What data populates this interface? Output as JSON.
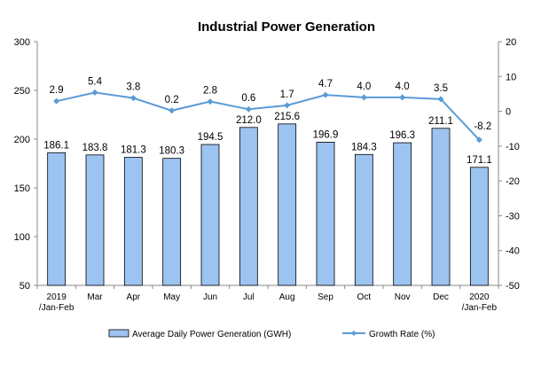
{
  "chart_data": {
    "type": "bar",
    "title": "Industrial Power Generation",
    "categories": [
      "2019\n/Jan-Feb",
      "Mar",
      "Apr",
      "May",
      "Jun",
      "Jul",
      "Aug",
      "Sep",
      "Oct",
      "Nov",
      "Dec",
      "2020\n/Jan-Feb"
    ],
    "series": [
      {
        "name": "Average Daily Power Generation (GWH)",
        "type": "bar",
        "axis": "left",
        "color": "#9DC3F0",
        "values": [
          186.1,
          183.8,
          181.3,
          180.3,
          194.5,
          212.0,
          215.6,
          196.9,
          184.3,
          196.3,
          211.1,
          171.1
        ],
        "labels": [
          "186.1",
          "183.8",
          "181.3",
          "180.3",
          "194.5",
          "212.0",
          "215.6",
          "196.9",
          "184.3",
          "196.3",
          "211.1",
          "171.1"
        ]
      },
      {
        "name": "Growth Rate (%)",
        "type": "line",
        "axis": "right",
        "color": "#5B9BD5",
        "values": [
          2.9,
          5.4,
          3.8,
          0.2,
          2.8,
          0.6,
          1.7,
          4.7,
          4.0,
          4.0,
          3.5,
          -8.2
        ],
        "labels": [
          "2.9",
          "5.4",
          "3.8",
          "0.2",
          "2.8",
          "0.6",
          "1.7",
          "4.7",
          "4.0",
          "4.0",
          "3.5",
          "-8.2"
        ]
      }
    ],
    "y_left": {
      "min": 50,
      "max": 300,
      "step": 50,
      "ticks": [
        "50",
        "100",
        "150",
        "200",
        "250",
        "300"
      ]
    },
    "y_right": {
      "min": -50,
      "max": 20,
      "step": 10,
      "ticks": [
        "-50",
        "-40",
        "-30",
        "-20",
        "-10",
        "0",
        "10",
        "20"
      ]
    },
    "grid": false,
    "legend_position": "bottom"
  }
}
